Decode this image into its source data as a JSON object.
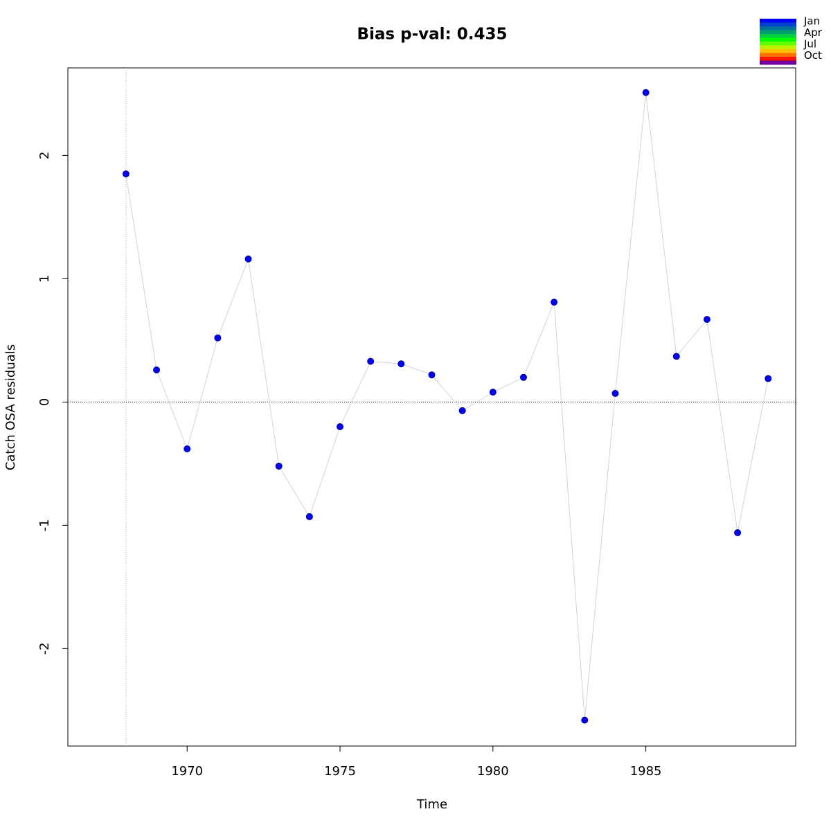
{
  "chart_data": {
    "type": "scatter",
    "title": "Bias p-val: 0.435",
    "title_color": "#228b22",
    "x_label": "Time",
    "y_label": "Catch OSA residuals",
    "x": [
      1968,
      1969,
      1970,
      1971,
      1972,
      1973,
      1974,
      1975,
      1976,
      1977,
      1978,
      1979,
      1980,
      1981,
      1982,
      1983,
      1984,
      1985,
      1986,
      1987,
      1988,
      1989
    ],
    "series": [
      {
        "color": "#0000ff",
        "values": [
          1.85,
          0.26,
          -0.38,
          0.52,
          1.16,
          -0.52,
          -0.93,
          -0.2,
          0.33,
          0.31,
          0.22,
          -0.07,
          0.08,
          0.2,
          0.81,
          -2.58,
          0.07,
          2.51,
          0.37,
          0.67,
          -1.06,
          0.19
        ]
      }
    ],
    "connect_color": "#d3d3d3",
    "xlim": [
      1966.1,
      1989.9
    ],
    "ylim": [
      -2.79,
      2.71
    ],
    "xticks": [
      1970,
      1975,
      1980,
      1985
    ],
    "yticks": [
      -2,
      -1,
      0,
      1,
      2
    ],
    "hline": 0,
    "vline": 1968,
    "legend": {
      "labels": [
        "Jan",
        "Apr",
        "Jul",
        "Oct"
      ],
      "colors": [
        "#0000ff",
        "#0040d0",
        "#00709a",
        "#00a070",
        "#00d040",
        "#00ff00",
        "#60ff00",
        "#c0f000",
        "#ffc000",
        "#ff7000",
        "#ff1000",
        "#7000a0"
      ]
    }
  }
}
